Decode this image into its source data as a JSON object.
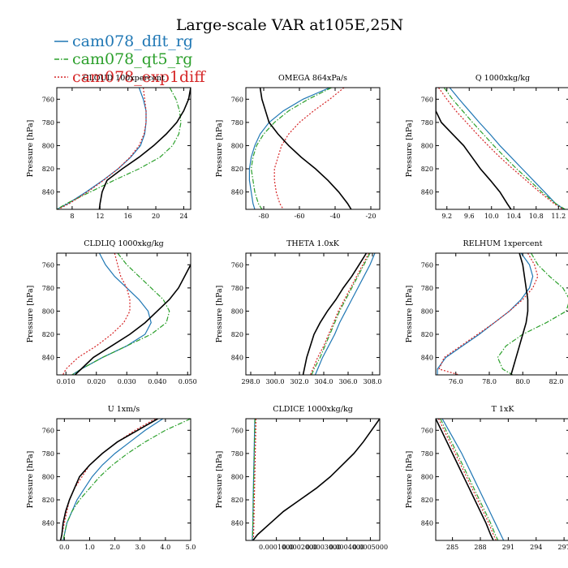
{
  "figure": {
    "title": "Large-scale VAR at105E,25N",
    "legend": [
      {
        "name": "cam078_dflt_rg",
        "color": "#1f77b4",
        "dash": "solid"
      },
      {
        "name": "cam078_qt5_rg",
        "color": "#2ca02c",
        "dash": "dashdot"
      },
      {
        "name": "cam078_exp1diff",
        "color": "#d62728",
        "dash": "dot"
      }
    ],
    "obs_color": "#000000"
  },
  "chart_data": [
    {
      "type": "line",
      "title": "CLOUD 100xpercent",
      "xlabel": "",
      "ylabel": "Pressure [hPa]",
      "xlim": [
        5.8,
        25
      ],
      "ylim": [
        750,
        855
      ],
      "ycategories": [
        760,
        780,
        800,
        820,
        840
      ],
      "xticks": [
        8,
        12,
        16,
        20,
        24
      ],
      "xticklabels": [
        "8",
        "12",
        "16",
        "20",
        "24"
      ],
      "yvals": [
        750,
        760,
        770,
        780,
        790,
        800,
        810,
        820,
        830,
        840,
        850,
        855
      ],
      "series": [
        {
          "name": "cam078_dflt_rg",
          "values": [
            17.6,
            18.2,
            18.6,
            18.6,
            18.4,
            17.8,
            16.4,
            14.6,
            12.4,
            10.0,
            7.4,
            5.8
          ]
        },
        {
          "name": "cam078_qt5_rg",
          "values": [
            22.0,
            22.9,
            23.4,
            23.6,
            23.3,
            22.4,
            20.6,
            17.6,
            14.0,
            10.6,
            7.2,
            5.8
          ]
        },
        {
          "name": "cam078_exp1diff",
          "values": [
            18.2,
            18.4,
            18.6,
            18.6,
            18.3,
            17.6,
            16.3,
            14.6,
            12.5,
            10.2,
            7.6,
            6.0
          ]
        },
        {
          "name": "obs",
          "values": [
            25.0,
            24.7,
            24.0,
            23.0,
            21.5,
            19.7,
            17.6,
            15.2,
            13.0,
            12.3,
            12.0,
            11.9
          ]
        }
      ]
    },
    {
      "type": "line",
      "title": "OMEGA 864xPa/s",
      "xlabel": "",
      "ylabel": "Pressure [hPa]",
      "xlim": [
        -90,
        -15
      ],
      "ylim": [
        750,
        855
      ],
      "xticks": [
        -80,
        -60,
        -40,
        -20
      ],
      "xticklabels": [
        "-80",
        "-60",
        "-40",
        "-20"
      ],
      "yvals": [
        750,
        760,
        770,
        780,
        790,
        800,
        810,
        820,
        830,
        840,
        850,
        855
      ],
      "series": [
        {
          "name": "cam078_dflt_rg",
          "values": [
            -43,
            -58,
            -69,
            -77,
            -82,
            -85,
            -87,
            -88,
            -88,
            -87,
            -86,
            -85
          ]
        },
        {
          "name": "cam078_qt5_rg",
          "values": [
            -42,
            -55,
            -66,
            -74,
            -80,
            -84,
            -86,
            -87,
            -86,
            -85,
            -83,
            -81
          ]
        },
        {
          "name": "cam078_exp1diff",
          "values": [
            -35,
            -43,
            -52,
            -60,
            -66,
            -70,
            -72,
            -74,
            -74,
            -73,
            -71,
            -69
          ]
        },
        {
          "name": "obs",
          "values": [
            -82,
            -81,
            -79,
            -77,
            -72,
            -66,
            -59,
            -51,
            -44,
            -38,
            -33,
            -31
          ]
        }
      ]
    },
    {
      "type": "line",
      "title": "Q 1000xkg/kg",
      "xlabel": "",
      "ylabel": "Pressure [hPa]",
      "xlim": [
        9.0,
        11.4
      ],
      "ylim": [
        750,
        855
      ],
      "xticks": [
        9.2,
        9.6,
        10.0,
        10.4,
        10.8,
        11.2
      ],
      "xticklabels": [
        "9.2",
        "9.6",
        "10.0",
        "10.4",
        "10.8",
        "11.2"
      ],
      "yvals": [
        750,
        760,
        770,
        780,
        790,
        800,
        810,
        820,
        830,
        840,
        850,
        855
      ],
      "series": [
        {
          "name": "cam078_dflt_rg",
          "values": [
            9.25,
            9.42,
            9.6,
            9.78,
            9.97,
            10.15,
            10.35,
            10.55,
            10.75,
            10.95,
            11.15,
            11.3
          ]
        },
        {
          "name": "cam078_qt5_rg",
          "values": [
            9.15,
            9.3,
            9.48,
            9.66,
            9.85,
            10.04,
            10.24,
            10.45,
            10.68,
            10.9,
            11.15,
            11.32
          ]
        },
        {
          "name": "cam078_exp1diff",
          "values": [
            9.05,
            9.2,
            9.36,
            9.55,
            9.74,
            9.94,
            10.15,
            10.38,
            10.62,
            10.86,
            11.12,
            11.28
          ]
        },
        {
          "name": "obs",
          "values": [
            9.0,
            9.0,
            9.0,
            9.1,
            9.3,
            9.5,
            9.65,
            9.8,
            9.98,
            10.15,
            10.28,
            10.35
          ]
        }
      ]
    },
    {
      "type": "line",
      "title": "CLDLIQ 1000xkg/kg",
      "xlabel": "",
      "ylabel": "Pressure [hPa]",
      "xlim": [
        0.007,
        0.051
      ],
      "ylim": [
        750,
        855
      ],
      "xticks": [
        0.01,
        0.02,
        0.03,
        0.04,
        0.05
      ],
      "xticklabels": [
        "0.010",
        "0.020",
        "0.030",
        "0.040",
        "0.050"
      ],
      "yvals": [
        750,
        760,
        770,
        780,
        790,
        800,
        810,
        820,
        830,
        840,
        850,
        855
      ],
      "series": [
        {
          "name": "cam078_dflt_rg",
          "values": [
            0.021,
            0.023,
            0.026,
            0.03,
            0.034,
            0.037,
            0.038,
            0.036,
            0.03,
            0.022,
            0.015,
            0.012
          ]
        },
        {
          "name": "cam078_qt5_rg",
          "values": [
            0.027,
            0.03,
            0.034,
            0.038,
            0.042,
            0.044,
            0.043,
            0.038,
            0.03,
            0.022,
            0.015,
            0.012
          ]
        },
        {
          "name": "cam078_exp1diff",
          "values": [
            0.026,
            0.027,
            0.028,
            0.03,
            0.031,
            0.031,
            0.029,
            0.025,
            0.02,
            0.014,
            0.01,
            0.009
          ]
        },
        {
          "name": "obs",
          "values": [
            0.052,
            0.051,
            0.049,
            0.047,
            0.044,
            0.04,
            0.036,
            0.031,
            0.025,
            0.019,
            0.015,
            0.013
          ]
        }
      ]
    },
    {
      "type": "line",
      "title": "THETA 1.0xK",
      "xlabel": "",
      "ylabel": "Pressure [hPa]",
      "xlim": [
        297.6,
        308.6
      ],
      "ylim": [
        750,
        855
      ],
      "xticks": [
        298,
        300,
        302,
        304,
        306,
        308
      ],
      "xticklabels": [
        "298.0",
        "300.0",
        "302.0",
        "304.0",
        "306.0",
        "308.0"
      ],
      "yvals": [
        750,
        760,
        770,
        780,
        790,
        800,
        810,
        820,
        830,
        840,
        850,
        855
      ],
      "series": [
        {
          "name": "cam078_dflt_rg",
          "values": [
            308.2,
            307.8,
            307.3,
            306.8,
            306.3,
            305.8,
            305.3,
            304.9,
            304.4,
            303.9,
            303.5,
            303.3
          ]
        },
        {
          "name": "cam078_qt5_rg",
          "values": [
            307.8,
            307.3,
            306.8,
            306.3,
            305.8,
            305.3,
            304.9,
            304.5,
            304.1,
            303.7,
            303.2,
            303.0
          ]
        },
        {
          "name": "cam078_exp1diff",
          "values": [
            307.7,
            307.2,
            306.7,
            306.2,
            305.7,
            305.2,
            304.8,
            304.4,
            304.0,
            303.5,
            303.1,
            302.9
          ]
        },
        {
          "name": "obs",
          "values": [
            307.5,
            306.9,
            306.3,
            305.6,
            305.0,
            304.3,
            303.7,
            303.2,
            302.9,
            302.6,
            302.4,
            302.3
          ]
        }
      ]
    },
    {
      "type": "line",
      "title": "RELHUM 1xpercent",
      "xlabel": "",
      "ylabel": "Pressure [hPa]",
      "xlim": [
        74.8,
        82.8
      ],
      "ylim": [
        750,
        855
      ],
      "xticks": [
        76,
        78,
        80,
        82
      ],
      "xticklabels": [
        "76.0",
        "78.0",
        "80.0",
        "82.0"
      ],
      "yvals": [
        750,
        760,
        770,
        780,
        790,
        800,
        810,
        820,
        830,
        840,
        850,
        855
      ],
      "series": [
        {
          "name": "cam078_dflt_rg",
          "values": [
            79.9,
            80.4,
            80.6,
            80.4,
            79.9,
            79.2,
            78.3,
            77.4,
            76.4,
            75.4,
            74.9,
            74.9
          ]
        },
        {
          "name": "cam078_qt5_rg",
          "values": [
            80.5,
            80.9,
            81.6,
            82.4,
            82.8,
            82.6,
            81.4,
            80.0,
            79.0,
            78.5,
            78.8,
            79.4
          ]
        },
        {
          "name": "cam078_exp1diff",
          "values": [
            80.3,
            80.7,
            80.9,
            80.6,
            80.0,
            79.2,
            78.3,
            77.3,
            76.3,
            75.3,
            75.0,
            76.2
          ]
        },
        {
          "name": "obs",
          "values": [
            79.8,
            80.0,
            80.1,
            80.2,
            80.3,
            80.3,
            80.2,
            80.0,
            79.8,
            79.6,
            79.4,
            79.3
          ]
        }
      ]
    },
    {
      "type": "line",
      "title": "U 1xm/s",
      "xlabel": "",
      "ylabel": "Pressure [hPa]",
      "xlim": [
        -0.3,
        5.0
      ],
      "ylim": [
        750,
        855
      ],
      "xticks": [
        0,
        1,
        2,
        3,
        4,
        5
      ],
      "xticklabels": [
        "0.0",
        "1.0",
        "2.0",
        "3.0",
        "4.0",
        "5.0"
      ],
      "yvals": [
        750,
        760,
        770,
        780,
        790,
        800,
        810,
        820,
        830,
        840,
        850,
        855
      ],
      "series": [
        {
          "name": "cam078_dflt_rg",
          "values": [
            3.9,
            3.2,
            2.6,
            2.0,
            1.5,
            1.1,
            0.8,
            0.5,
            0.3,
            0.1,
            0.0,
            -0.05
          ]
        },
        {
          "name": "cam078_qt5_rg",
          "values": [
            5.0,
            4.0,
            3.2,
            2.5,
            1.9,
            1.4,
            1.0,
            0.6,
            0.3,
            0.1,
            0.0,
            -0.05
          ]
        },
        {
          "name": "cam078_exp1diff",
          "values": [
            3.6,
            2.8,
            2.1,
            1.5,
            1.0,
            0.7,
            0.4,
            0.2,
            0.1,
            0.0,
            -0.1,
            -0.15
          ]
        },
        {
          "name": "obs",
          "values": [
            3.7,
            2.9,
            2.1,
            1.5,
            1.0,
            0.6,
            0.4,
            0.2,
            0.05,
            -0.05,
            -0.1,
            -0.15
          ]
        }
      ]
    },
    {
      "type": "line",
      "title": "CLDICE 1000xkg/kg",
      "xlabel": "",
      "ylabel": "Pressure [hPa]",
      "xlim": [
        -3e-05,
        0.00054
      ],
      "ylim": [
        750,
        855
      ],
      "xticks": [
        0.0001,
        0.0002,
        0.0003,
        0.0004,
        0.0005
      ],
      "xticklabels": [
        "0.0001000",
        "0.0002000",
        "0.0003000",
        "0.0004000",
        "0.0005000"
      ],
      "yvals": [
        750,
        760,
        770,
        780,
        790,
        800,
        810,
        820,
        830,
        840,
        850,
        855
      ],
      "series": [
        {
          "name": "cam078_dflt_rg",
          "values": [
            8e-06,
            7e-06,
            6e-06,
            5e-06,
            4e-06,
            3e-06,
            2e-06,
            1e-06,
            5e-07,
            0.0,
            -2e-06,
            -3e-06
          ]
        },
        {
          "name": "cam078_qt5_rg",
          "values": [
            9e-06,
            8e-06,
            7e-06,
            6e-06,
            5e-06,
            4e-06,
            3e-06,
            2e-06,
            1e-06,
            0.0,
            -1e-06,
            -2e-06
          ]
        },
        {
          "name": "cam078_exp1diff",
          "values": [
            1.3e-05,
            1.2e-05,
            1.1e-05,
            1e-05,
            9e-06,
            8e-06,
            7e-06,
            6e-06,
            5e-06,
            4e-06,
            3e-06,
            2e-06
          ]
        },
        {
          "name": "obs",
          "values": [
            0.00054,
            0.000505,
            0.00047,
            0.00043,
            0.00038,
            0.00033,
            0.00027,
            0.0002,
            0.00013,
            7.5e-05,
            2e-05,
            0.0
          ]
        }
      ]
    },
    {
      "type": "line",
      "title": "T 1xK",
      "xlabel": "",
      "ylabel": "Pressure [hPa]",
      "xlim": [
        283.2,
        297.6
      ],
      "ylim": [
        750,
        855
      ],
      "xticks": [
        285,
        288,
        291,
        294,
        297
      ],
      "xticklabels": [
        "285",
        "288",
        "291",
        "294",
        "297"
      ],
      "yvals": [
        750,
        760,
        770,
        780,
        790,
        800,
        810,
        820,
        830,
        840,
        850,
        855
      ],
      "series": [
        {
          "name": "cam078_dflt_rg",
          "values": [
            283.9,
            284.6,
            285.3,
            286.0,
            286.6,
            287.2,
            287.8,
            288.4,
            289.0,
            289.6,
            290.2,
            290.5
          ]
        },
        {
          "name": "cam078_qt5_rg",
          "values": [
            283.7,
            284.3,
            284.9,
            285.5,
            286.1,
            286.7,
            287.3,
            287.9,
            288.5,
            289.1,
            289.6,
            289.9
          ]
        },
        {
          "name": "cam078_exp1diff",
          "values": [
            283.5,
            284.1,
            284.7,
            285.3,
            285.9,
            286.5,
            287.1,
            287.7,
            288.3,
            288.9,
            289.4,
            289.7
          ]
        },
        {
          "name": "obs",
          "values": [
            283.2,
            283.8,
            284.4,
            285.0,
            285.6,
            286.2,
            286.8,
            287.4,
            288.0,
            288.6,
            289.1,
            289.4
          ]
        }
      ]
    }
  ]
}
